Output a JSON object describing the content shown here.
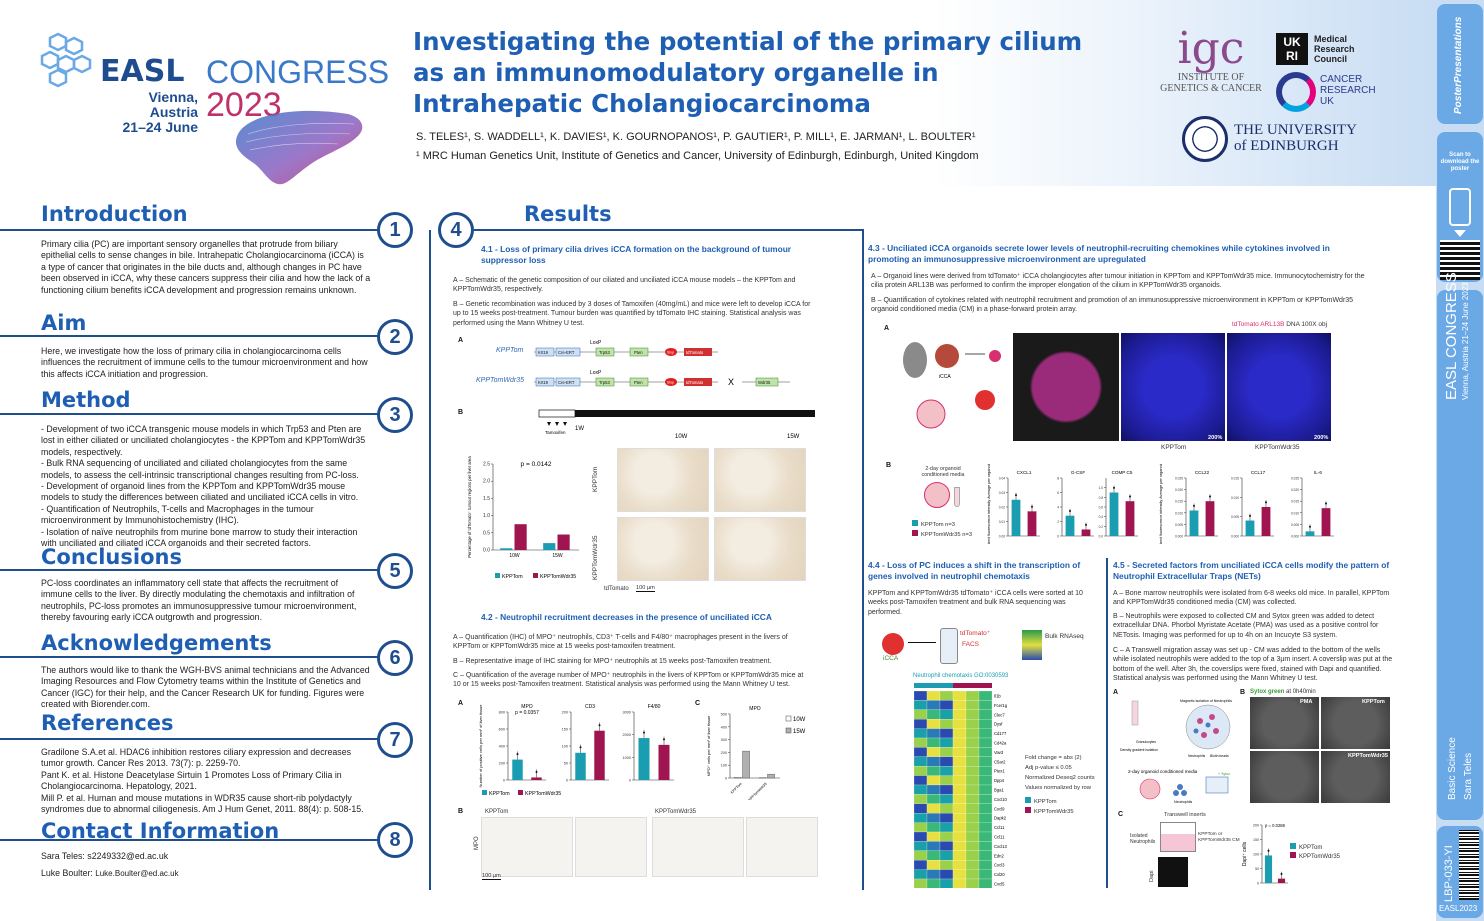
{
  "header": {
    "easl": "EASL",
    "congress": "CONGRESS",
    "city": "Vienna, Austria",
    "dates": "21–24 June",
    "year": "2023",
    "title_lines": [
      "Investigating the potential of the primary cilium",
      "as an immunomodulatory organelle in",
      "Intrahepatic Cholangiocarcinoma"
    ],
    "authors": "S. TELES¹, S. WADDELL¹, K. DAVIES¹, K. GOURNOPANOS¹, P. GAUTIER¹, P. MILL¹, E. JARMAN¹, L. BOULTER¹",
    "affiliation": "¹ MRC Human Genetics Unit, Institute of Genetics and Cancer, University of Edinburgh, Edinburgh, United Kingdom",
    "igc": {
      "big": "igc",
      "line1": "INSTITUTE OF",
      "line2": "GENETICS & CANCER"
    },
    "ukri": {
      "box": "UK RI",
      "line1": "Medical",
      "line2": "Research",
      "line3": "Council"
    },
    "cruk": {
      "line1": "CANCER",
      "line2": "RESEARCH",
      "line3": "UK"
    },
    "uoe": {
      "line1": "THE UNIVERSITY",
      "line2": "of EDINBURGH"
    }
  },
  "sidebar": {
    "brand": "PosterPresentations",
    "scan": "Scan to download the poster",
    "easl": "EASL CONGRESS",
    "place": "Vienna, Austria 21–24 June 2023",
    "category": "Basic Science",
    "author": "Sara Teles",
    "code": "LBP-033-YI",
    "footer": "EASL2023"
  },
  "intro": {
    "heading": "Introduction",
    "num": "1",
    "text": "Primary cilia (PC) are important sensory organelles that protrude from biliary epithelial cells to sense changes in bile. Intrahepatic Cholangiocarcinoma (iCCA) is a type of cancer that originates in the bile ducts and, although changes in PC have been observed in iCCA, why these cancers suppress their cilia and how the lack of a functioning cilium benefits iCCA development and progression remains unknown."
  },
  "aim": {
    "heading": "Aim",
    "num": "2",
    "text": "Here, we investigate how the loss of primary cilia in cholangiocarcinoma cells influences the recruitment of immune cells to the tumour microenvironment and how this affects iCCA initiation and progression."
  },
  "method": {
    "heading": "Method",
    "num": "3",
    "items": [
      "- Development of two iCCA transgenic mouse models in which Trp53 and Pten are lost in either ciliated or unciliated cholangiocytes - the KPPTom and KPPTomWdr35 models, respectively.",
      "- Bulk RNA sequencing of unciliated and ciliated cholangiocytes from the same models, to assess the cell-intrinsic transcriptional changes resulting from PC-loss.",
      "- Development of organoid lines from the KPPTom and KPPTomWdr35 mouse models to study the differences between ciliated and unciliated iCCA cells in vitro.",
      "- Quantification of Neutrophils, T-cells and Macrophages in the tumour microenvironment by Immunohistochemistry (IHC).",
      "- Isolation of naïve neutrophils from murine bone marrow to study their interaction with unciliated and ciliated iCCA organoids and their secreted factors."
    ]
  },
  "conclusions": {
    "heading": "Conclusions",
    "num": "5",
    "text": "PC-loss coordinates an inflammatory cell state that affects the recruitment of immune cells to the liver. By directly modulating the chemotaxis and infiltration of neutrophils, PC-loss promotes an immunosuppressive tumour microenvironment, thereby favouring early iCCA outgrowth and progression."
  },
  "ack": {
    "heading": "Acknowledgements",
    "num": "6",
    "text": "The authors would like to thank the WGH-BVS animal technicians and the Advanced Imaging Resources and Flow Cytometry teams within the Institute of Genetics and Cancer (IGC) for their help, and the Cancer Research UK for funding. Figures were created with Biorender.com."
  },
  "refs": {
    "heading": "References",
    "num": "7",
    "items": [
      "Gradilone S.A.et al. HDAC6 inhibition restores ciliary expression and decreases tumor growth. Cancer Res 2013. 73(7): p. 2259-70.",
      "Pant K. et al. Histone Deacetylase Sirtuin 1 Promotes Loss of Primary Cilia in Cholangiocarcinoma. Hepatology, 2021.",
      "Mill P. et al. Human and mouse mutations in WDR35 cause short-rib polydactyly syndromes due to abnormal ciliogenesis. Am J Hum Genet, 2011. 88(4): p. 508-15."
    ]
  },
  "contact": {
    "heading": "Contact Information",
    "num": "8",
    "line1": "Sara Teles: s2249332@ed.ac.uk",
    "line2_label": "Luke Boulter: ",
    "line2_email": "Luke.Boulter@ed.ac.uk"
  },
  "results": {
    "heading": "Results",
    "num": "4",
    "s41": {
      "title": "4.1 - Loss of primary cilia drives iCCA formation on the background of tumour suppressor loss",
      "a": "A – Schematic of the genetic composition of our ciliated and unciliated iCCA mouse models – the KPPTom and KPPTomWdr35, respectively.",
      "b": "B – Genetic recombination was induced by 3 doses of Tamoxifen (40mg/mL) and mice were left to develop iCCA for up to 15 weeks post-treatment. Tumour burden was quantified by tdTomato IHC staining. Statistical analysis was performed using the Mann Whitney U test.",
      "kpptom": "KPPTom",
      "kpptomwdr35": "KPPTomWdr35",
      "genes": [
        "Krt19",
        "Cre-ERT",
        "Trp53",
        "Pten",
        "Stop",
        "tdTomato",
        "Wdr35"
      ],
      "loxp": "LoxP",
      "x": "X",
      "tamoxifen": "Tamoxifen",
      "w1": "1W",
      "w10": "10W",
      "w15": "15W",
      "pval": "p = 0.0142",
      "ylabel": "Percentage of tdTomato⁺ tumour regions per liver area",
      "legend": [
        "KPPTom",
        "KPPTomWdr35"
      ],
      "side_labels": [
        "KPPTom",
        "KPPTomWdr35"
      ],
      "tdtomato": "tdTomato",
      "scale": "100 µm"
    },
    "s42": {
      "title": "4.2 - Neutrophil recruitment decreases in the presence of unciliated iCCA",
      "a": "A – Quantification (IHC) of MPO⁺ neutrophils, CD3⁺ T-cells and F4/80⁺ macrophages present in the livers of KPPTom or KPPTomWdr35 mice at 15 weeks post-tamoxifen treatment.",
      "b": "B – Representative image of IHC staining for MPO⁺ neutrophils at 15 weeks post-Tamoxifen treatment.",
      "c": "C – Quantification of the average number of MPO⁺ neutrophils in the livers of KPPTom or KPPTomWdr35 mice at 10 or 15 weeks post-Tamoxifen treatment. Statistical analysis was performed using the Mann Whitney U test.",
      "charts": [
        "MPO",
        "CD3",
        "F4/80"
      ],
      "pval": "p = 0.0357",
      "ylabel": "Number of positive cells per mm² of liver tissue",
      "c_title": "MPO",
      "c_ylabel": "MPO⁺ cells per mm² of liver tissue",
      "c_legend": [
        "10W",
        "15W"
      ],
      "legend": [
        "KPPTom",
        "KPPTomWdr35"
      ],
      "b_kpptom": "KPPTom",
      "b_kpptomwdr35": "KPPTomWdr35",
      "b_side": "MPO",
      "scale": "100 µm"
    },
    "s43": {
      "title": "4.3 - Unciliated iCCA organoids secrete lower levels of neutrophil-recruiting chemokines while cytokines involved in promoting an immunosuppressive microenvironment are upregulated",
      "a": "A – Organoid lines were derived from tdTomato⁺ iCCA cholangiocytes after tumour initiation in KPPTom and KPPTomWdr35 mice. Immunocytochemistry for the cilia protein ARL13B was performed to confirm the improper elongation of the cilium in KPPTomWdr35 organoids.",
      "b": "B – Quantification of cytokines related with neutrophil recruitment and promotion of an immunosuppressive microenvironment in KPPTom or KPPTomWdr35 organoid conditioned media (CM)  in a phase-forward protein array.",
      "stain_td": "tdTomato",
      "stain_arl": "ARL13B",
      "stain_dna": "DNA",
      "stain_mag": "100X obj",
      "icca": "iCCA",
      "cond_media": "2-day organoid conditioned media",
      "kpptom": "KPPTom",
      "kpptomwdr35": "KPPTomWdr35",
      "zoom": "200%",
      "legend": [
        "KPPTom n=3",
        "KPPTomWdr35 n=3"
      ],
      "charts": [
        "CXCL1",
        "G-CSF",
        "COMP C5",
        "CCL22",
        "CCL17",
        "IL-6"
      ],
      "ylabel": "Normalized fluorescence intensity Average per organoid line"
    },
    "s44": {
      "title": "4.4 - Loss of PC induces a shift in the transcription of genes involved in neutrophil chemotaxis",
      "text": "KPPTom and KPPTomWdr35 tdTomato⁺ iCCA cells were sorted at 10 weeks post-Tamoxifen treatment and bulk RNA sequencing was performed.",
      "td": "tdTomato⁺",
      "facs": "FACS",
      "icca": "iCCA",
      "bulk": "Bulk RNAseq",
      "go": "Neutrophil chemotaxis GO:0030593",
      "genes": [
        "Il1b",
        "Fcer1g",
        "Clec7",
        "Dysf",
        "Cd177",
        "Cd42a",
        "Vav3",
        "C5ar2",
        "Ptex1",
        "Dpp4",
        "Bga1",
        "Cxcl10",
        "Cxcl9",
        "Dapk2",
        "Ccl11",
        "Ccl11",
        "Cxcl13",
        "Edn2",
        "Cxcl3",
        "Cxl20",
        "Cxcl5"
      ],
      "fold": "Fold change = abs (2)",
      "adj": "Adj p-value ≤ 0.05",
      "norm": "Normalized Deseq2 counts",
      "row": "Values normalized by row",
      "legend": [
        "KPPTom",
        "KPPTomWdr35"
      ]
    },
    "s45": {
      "title": "4.5 - Secreted factors from unciliated iCCA cells modify the pattern of Neutrophil Extracellular Traps (NETs)",
      "a": "A – Bone marrow neutrophils were isolated from 6-8 weeks old mice. In parallel, KPPTom and KPPTomWdr35 conditioned media (CM) was collected.",
      "b": "B – Neutrophils were exposed to collected CM and Sytox green was added to detect extracellular DNA. Phorbol Myristate Acetate (PMA) was used as a positive control for NETosis. Imaging was performed for up to 4h on an Incucyte S3 system.",
      "c": "C – A Transwell migration assay was set up - CM was added to the bottom of the wells while isolated neutrophils were added to the top of a 3µm insert. A coverslip was put at the bottom of the well. After 3h, the coverslips were fixed, stained with Dapi and quantified. Statistical analysis was performed using the Mann Whitney U test.",
      "sytox": "Sytox green",
      "sytox_time": "at 0h40min",
      "panels": [
        "PMA",
        "KPPTom",
        "",
        "KPPTomWdr35"
      ],
      "magnetic": "Magnetic isolation of Neutrophils",
      "organoid_cm": "2-day organoid conditioned media",
      "transwell": "Transwell inserts",
      "isolated": "Isolated Neutrophils",
      "cm_label": "KPPTom or KPPTomWdr35 CM",
      "dapi": "Dapi",
      "pval": "p = 0.0286",
      "ylabel": "Dapi⁺ cells",
      "legend": [
        "KPPTom",
        "KPPTomWdr35"
      ],
      "neutro": "Neutrophils",
      "beads": "Biotin beads",
      "sytox_well": "+ Sytox",
      "granulocytes": "Granulocytes",
      "density": "Density gradient isolation"
    }
  },
  "chart_data": [
    {
      "type": "bar",
      "title": "",
      "categories": [
        "10W",
        "15W"
      ],
      "series": [
        {
          "name": "KPPTom",
          "values": [
            0.05,
            0.2
          ]
        },
        {
          "name": "KPPTomWdr35",
          "values": [
            0.75,
            0.45
          ]
        }
      ],
      "ylim": [
        0,
        2.5
      ],
      "yticks": [
        "0.0",
        "0.5",
        "1.0",
        "1.5",
        "2.0",
        "2.5"
      ],
      "ylabel": "Percentage of tdTomato⁺ tumour regions per liver area",
      "annotation": "p = 0.0142"
    },
    {
      "type": "bar",
      "title": "MPO",
      "categories": [
        "KPPTom",
        "KPPTomWdr35"
      ],
      "values": [
        240,
        30
      ],
      "ylim": [
        0,
        800
      ],
      "yticks": [
        "0",
        "200",
        "400",
        "600",
        "800"
      ],
      "annotation": "p = 0.0357"
    },
    {
      "type": "bar",
      "title": "CD3",
      "categories": [
        "KPPTom",
        "KPPTomWdr35"
      ],
      "values": [
        80,
        145
      ],
      "ylim": [
        0,
        200
      ],
      "yticks": [
        "0",
        "50",
        "100",
        "150",
        "200"
      ]
    },
    {
      "type": "bar",
      "title": "F4/80",
      "categories": [
        "KPPTom",
        "KPPTomWdr35"
      ],
      "values": [
        1850,
        1550
      ],
      "ylim": [
        0,
        3000
      ],
      "yticks": [
        "0",
        "1000",
        "2000",
        "3000"
      ]
    },
    {
      "type": "bar",
      "title": "MPO",
      "categories": [
        "KPPTom",
        "KPPTomWdr35"
      ],
      "series": [
        {
          "name": "10W",
          "values": [
            5,
            2
          ]
        },
        {
          "name": "15W",
          "values": [
            210,
            30
          ]
        }
      ],
      "ylim": [
        0,
        500
      ],
      "yticks": [
        "0",
        "100",
        "200",
        "300",
        "400",
        "500"
      ]
    },
    {
      "type": "bar",
      "title": "CXCL1",
      "categories": [
        "KPPTom",
        "KPPTomWdr35"
      ],
      "values": [
        0.025,
        0.017
      ],
      "ylim": [
        0,
        0.04
      ],
      "yticks": [
        "0.00",
        "0.01",
        "0.02",
        "0.03",
        "0.04"
      ]
    },
    {
      "type": "bar",
      "title": "G-CSF",
      "categories": [
        "KPPTom",
        "KPPTomWdr35"
      ],
      "values": [
        2.8,
        0.9
      ],
      "ylim": [
        0,
        8
      ],
      "yticks": [
        "0",
        "2",
        "4",
        "6",
        "8"
      ]
    },
    {
      "type": "bar",
      "title": "COMP C5",
      "categories": [
        "KPPTom",
        "KPPTomWdr35"
      ],
      "values": [
        0.9,
        0.72
      ],
      "ylim": [
        0,
        1.2
      ],
      "yticks": [
        "0.0",
        "0.2",
        "0.4",
        "0.6",
        "0.8",
        "1.0"
      ]
    },
    {
      "type": "bar",
      "title": "CCL22",
      "categories": [
        "KPPTom",
        "KPPTomWdr35"
      ],
      "values": [
        0.011,
        0.015
      ],
      "ylim": [
        0,
        0.025
      ],
      "yticks": [
        "0.000",
        "0.005",
        "0.010",
        "0.015",
        "0.020",
        "0.025"
      ]
    },
    {
      "type": "bar",
      "title": "CCL17",
      "categories": [
        "KPPTom",
        "KPPTomWdr35"
      ],
      "values": [
        0.004,
        0.0075
      ],
      "ylim": [
        0,
        0.015
      ],
      "yticks": [
        "0.000",
        "0.005",
        "0.010",
        "0.015"
      ]
    },
    {
      "type": "bar",
      "title": "IL-6",
      "categories": [
        "KPPTom",
        "KPPTomWdr35"
      ],
      "values": [
        0.002,
        0.012
      ],
      "ylim": [
        0,
        0.025
      ],
      "yticks": [
        "0.000",
        "0.005",
        "0.010",
        "0.015",
        "0.020",
        "0.025"
      ]
    },
    {
      "type": "bar",
      "title": "",
      "categories": [
        "KPPTom",
        "KPPTomWdr35"
      ],
      "values": [
        95,
        15
      ],
      "ylim": [
        0,
        200
      ],
      "yticks": [
        "0",
        "50",
        "100",
        "150",
        "200"
      ],
      "ylabel": "Dapi⁺ cells",
      "annotation": "p = 0.0286"
    }
  ]
}
